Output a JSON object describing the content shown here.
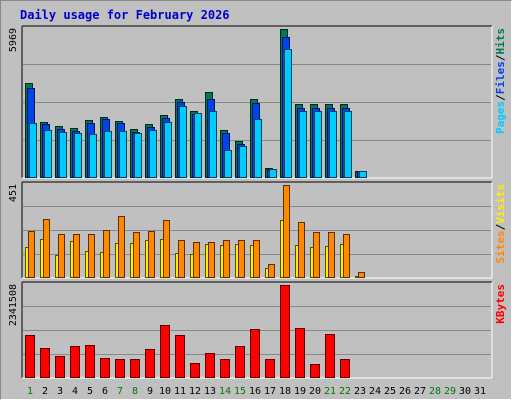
{
  "title": "Daily usage for February 2026",
  "colors": {
    "background": "#c0c0c0",
    "panel": "#c0c0c0",
    "gridline": "#888888",
    "pages": "#00ccff",
    "files": "#0044ee",
    "hits": "#007755",
    "visits": "#ffee00",
    "sites": "#ff8800",
    "kbytes": "#ff0000",
    "title": "#0000cc",
    "weekday_label": "#000000",
    "weekend_label": "#007700"
  },
  "chart_data": [
    {
      "type": "bar",
      "panel": "top",
      "max_label": "5969",
      "ylim": [
        0,
        5969
      ],
      "grid": true,
      "legend": [
        "Pages",
        "Files",
        "Hits"
      ],
      "legend_separator": "/",
      "categories": [
        "1",
        "2",
        "3",
        "4",
        "5",
        "6",
        "7",
        "8",
        "9",
        "10",
        "11",
        "12",
        "13",
        "14",
        "15",
        "16",
        "17",
        "18",
        "19",
        "20",
        "21",
        "22",
        "23",
        "24",
        "25",
        "26",
        "27",
        "28",
        "29",
        "30",
        "31"
      ],
      "series": [
        {
          "name": "Hits",
          "color": "#007755",
          "values": [
            3820,
            2250,
            2080,
            2020,
            2340,
            2450,
            2300,
            1950,
            2160,
            2540,
            3160,
            2690,
            3440,
            1940,
            1480,
            3170,
            410,
            5969,
            2950,
            2950,
            2950,
            2950,
            280,
            0,
            0,
            0,
            0,
            0,
            0,
            0,
            0
          ]
        },
        {
          "name": "Files",
          "color": "#0044ee",
          "values": [
            3620,
            2150,
            1950,
            1880,
            2220,
            2350,
            2200,
            1850,
            2040,
            2420,
            3060,
            2570,
            3150,
            1800,
            1360,
            3010,
            370,
            5650,
            2820,
            2820,
            2820,
            2820,
            280,
            0,
            0,
            0,
            0,
            0,
            0,
            0,
            0
          ]
        },
        {
          "name": "Pages",
          "color": "#00ccff",
          "values": [
            2200,
            1910,
            1830,
            1800,
            1750,
            1870,
            1870,
            1800,
            1930,
            2260,
            2900,
            2590,
            2700,
            1110,
            1300,
            2360,
            360,
            5160,
            2680,
            2680,
            2680,
            2680,
            280,
            0,
            0,
            0,
            0,
            0,
            0,
            0,
            0
          ]
        }
      ]
    },
    {
      "type": "bar",
      "panel": "middle",
      "max_label": "451",
      "ylim": [
        0,
        451
      ],
      "grid": true,
      "legend": [
        "Sites",
        "Visits"
      ],
      "legend_separator": "/",
      "categories": [
        "1",
        "2",
        "3",
        "4",
        "5",
        "6",
        "7",
        "8",
        "9",
        "10",
        "11",
        "12",
        "13",
        "14",
        "15",
        "16",
        "17",
        "18",
        "19",
        "20",
        "21",
        "22",
        "23",
        "24",
        "25",
        "26",
        "27",
        "28",
        "29",
        "30",
        "31"
      ],
      "series": [
        {
          "name": "Visits",
          "color": "#ffee00",
          "values": [
            150,
            190,
            110,
            180,
            130,
            125,
            170,
            170,
            185,
            190,
            120,
            115,
            165,
            160,
            165,
            160,
            50,
            280,
            160,
            150,
            155,
            165,
            10,
            0,
            0,
            0,
            0,
            0,
            0,
            0,
            0
          ]
        },
        {
          "name": "Sites",
          "color": "#ff8800",
          "values": [
            230,
            285,
            215,
            215,
            215,
            235,
            300,
            225,
            230,
            280,
            185,
            175,
            175,
            185,
            185,
            185,
            70,
            451,
            270,
            225,
            225,
            215,
            28,
            0,
            0,
            0,
            0,
            0,
            0,
            0,
            0
          ]
        }
      ]
    },
    {
      "type": "bar",
      "panel": "bottom",
      "max_label": "2341508",
      "ylim": [
        0,
        2341508
      ],
      "grid": true,
      "legend": [
        "KBytes"
      ],
      "categories": [
        "1",
        "2",
        "3",
        "4",
        "5",
        "6",
        "7",
        "8",
        "9",
        "10",
        "11",
        "12",
        "13",
        "14",
        "15",
        "16",
        "17",
        "18",
        "19",
        "20",
        "21",
        "22",
        "23",
        "24",
        "25",
        "26",
        "27",
        "28",
        "29",
        "30",
        "31"
      ],
      "series": [
        {
          "name": "KBytes",
          "color": "#ff0000",
          "values": [
            1080000,
            760000,
            560000,
            810000,
            830000,
            510000,
            490000,
            480000,
            730000,
            1340000,
            1080000,
            380000,
            620000,
            470000,
            810000,
            1230000,
            490000,
            2341508,
            1260000,
            360000,
            1110000,
            490000,
            25000,
            0,
            0,
            0,
            0,
            0,
            0,
            0,
            0
          ]
        }
      ]
    }
  ],
  "x_axis": {
    "labels": [
      "1",
      "2",
      "3",
      "4",
      "5",
      "6",
      "7",
      "8",
      "9",
      "10",
      "11",
      "12",
      "13",
      "14",
      "15",
      "16",
      "17",
      "18",
      "19",
      "20",
      "21",
      "22",
      "23",
      "24",
      "25",
      "26",
      "27",
      "28",
      "29",
      "30",
      "31"
    ],
    "weekend_days": [
      "1",
      "7",
      "8",
      "14",
      "15",
      "21",
      "22",
      "28",
      "29"
    ]
  }
}
